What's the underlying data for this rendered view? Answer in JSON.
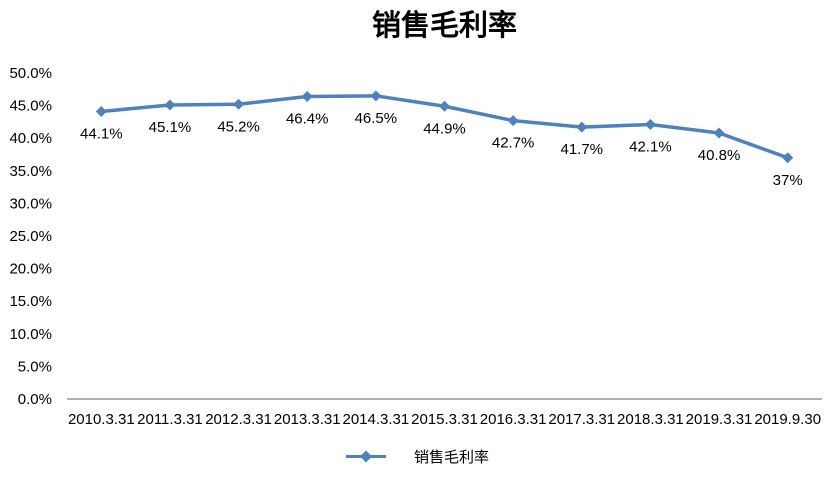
{
  "colors": {
    "series": "#4F81BD",
    "axis_line": "#808080",
    "text": "#000000",
    "background": "#FFFFFF"
  },
  "chart_data": {
    "type": "line",
    "title": "销售毛利率",
    "categories": [
      "2010.3.31",
      "2011.3.31",
      "2012.3.31",
      "2013.3.31",
      "2014.3.31",
      "2015.3.31",
      "2016.3.31",
      "2017.3.31",
      "2018.3.31",
      "2019.3.31",
      "2019.9.30"
    ],
    "series": [
      {
        "name": "销售毛利率",
        "marker": "diamond",
        "values": [
          44.1,
          45.1,
          45.2,
          46.4,
          46.5,
          44.9,
          42.7,
          41.7,
          42.1,
          40.8,
          37
        ],
        "labels": [
          "44.1%",
          "45.1%",
          "45.2%",
          "46.4%",
          "46.5%",
          "44.9%",
          "42.7%",
          "41.7%",
          "42.1%",
          "40.8%",
          "37%"
        ]
      }
    ],
    "xlabel": "",
    "ylabel": "",
    "ylim": [
      0,
      50
    ],
    "ytick_step": 5,
    "ytick_labels": [
      "0.0%",
      "5.0%",
      "10.0%",
      "15.0%",
      "20.0%",
      "25.0%",
      "30.0%",
      "35.0%",
      "40.0%",
      "45.0%",
      "50.0%"
    ],
    "grid": false,
    "legend_position": "bottom"
  }
}
